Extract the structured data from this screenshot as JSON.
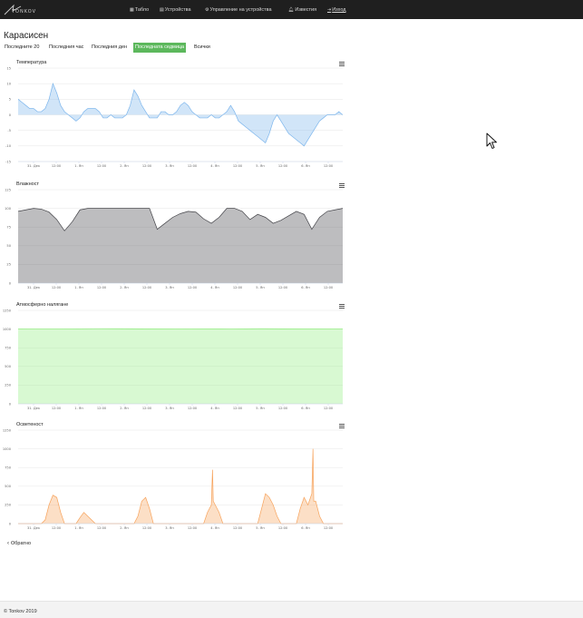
{
  "navbar": {
    "logo_text": "TONKOV",
    "items": [
      {
        "label": "Табло",
        "icon": "grid-icon"
      },
      {
        "label": "Устройства",
        "icon": "devices-icon"
      },
      {
        "label": "Управление на устройства",
        "icon": "gear-icon"
      },
      {
        "label": "Известия",
        "icon": "bell-icon"
      },
      {
        "label": "Изход",
        "icon": "logout-icon"
      }
    ]
  },
  "page": {
    "title": "Карасисен"
  },
  "filters": [
    {
      "label": "Последните 20",
      "active": false
    },
    {
      "label": "Последния час",
      "active": false
    },
    {
      "label": "Последния ден",
      "active": false
    },
    {
      "label": "Последната седмица",
      "active": true
    },
    {
      "label": "Всички",
      "active": false
    }
  ],
  "chart_data": [
    {
      "type": "area",
      "title": "Температура",
      "x_ticks": [
        "31. Дек",
        "12:00",
        "1. Ян",
        "12:00",
        "2. Ян",
        "12:00",
        "3. Ян",
        "12:00",
        "4. Ян",
        "12:00",
        "5. Ян",
        "12:00",
        "6. Ян",
        "12:00"
      ],
      "y_ticks": [
        "15",
        "10",
        "5",
        "0",
        "-5",
        "-10",
        "-15"
      ],
      "ylim": [
        -15,
        15
      ],
      "color": "#7cb5ec",
      "x": [
        0,
        2,
        4,
        6,
        8,
        10,
        12,
        14,
        16,
        18,
        20,
        22,
        24,
        26,
        28,
        30,
        32,
        34,
        36,
        38,
        40,
        42,
        44,
        46,
        48,
        50,
        52,
        54,
        56,
        58,
        60,
        62,
        64,
        66,
        68,
        70,
        72,
        74,
        76,
        78,
        80,
        82,
        84,
        86,
        88,
        90,
        92,
        94,
        96,
        98,
        100,
        102,
        104,
        106,
        108,
        110,
        112,
        114,
        116,
        118,
        120,
        122,
        124,
        126,
        128,
        130,
        132,
        134,
        136,
        138,
        140,
        142,
        144,
        146,
        148,
        150,
        152,
        154,
        156,
        158,
        160,
        162,
        164,
        166,
        168
      ],
      "values": [
        5,
        4,
        3,
        2,
        2,
        1,
        1,
        2,
        5,
        10,
        7,
        3,
        1,
        0,
        -1,
        -2,
        -1,
        1,
        2,
        2,
        2,
        1,
        -1,
        -1,
        0,
        -1,
        -1,
        -1,
        0,
        3,
        8,
        6,
        3,
        1,
        -1,
        -1,
        -1,
        1,
        1,
        0,
        0,
        1,
        3,
        4,
        3,
        1,
        0,
        -1,
        -1,
        -1,
        0,
        -1,
        -1,
        0,
        1,
        3,
        1,
        -2,
        -3,
        -4,
        -5,
        -6,
        -7,
        -8,
        -9,
        -6,
        -2,
        0,
        -2,
        -4,
        -6,
        -7,
        -8,
        -9,
        -10,
        -8,
        -6,
        -4,
        -2,
        -1,
        0,
        0,
        0,
        1,
        0
      ]
    },
    {
      "type": "area",
      "title": "Влажност",
      "x_ticks": [
        "31. Дек",
        "12:00",
        "1. Ян",
        "12:00",
        "2. Ян",
        "12:00",
        "3. Ян",
        "12:00",
        "4. Ян",
        "12:00",
        "5. Ян",
        "12:00",
        "6. Ян",
        "12:00"
      ],
      "y_ticks": [
        "125",
        "100",
        "75",
        "50",
        "25",
        "0"
      ],
      "ylim": [
        0,
        125
      ],
      "color": "#434348",
      "x": [
        0,
        4,
        8,
        12,
        16,
        20,
        24,
        28,
        32,
        36,
        40,
        44,
        48,
        52,
        56,
        60,
        64,
        68,
        72,
        76,
        80,
        84,
        88,
        92,
        96,
        100,
        104,
        108,
        112,
        116,
        120,
        124,
        128,
        132,
        136,
        140,
        144,
        148,
        152,
        156,
        160,
        164,
        168
      ],
      "values": [
        96,
        98,
        100,
        99,
        95,
        85,
        70,
        82,
        98,
        100,
        100,
        100,
        100,
        100,
        100,
        100,
        100,
        100,
        72,
        80,
        88,
        93,
        96,
        95,
        86,
        80,
        88,
        100,
        100,
        96,
        85,
        92,
        88,
        80,
        84,
        90,
        96,
        92,
        72,
        88,
        96,
        98,
        100
      ]
    },
    {
      "type": "area",
      "title": "Атмосферно налягане",
      "x_ticks": [
        "31. Дек",
        "12:00",
        "1. Ян",
        "12:00",
        "2. Ян",
        "12:00",
        "3. Ян",
        "12:00",
        "4. Ян",
        "12:00",
        "5. Ян",
        "12:00",
        "6. Ян",
        "12:00"
      ],
      "y_ticks": [
        "1250",
        "1000",
        "750",
        "500",
        "250",
        "0"
      ],
      "ylim": [
        0,
        1250
      ],
      "color": "#90ed7d",
      "x": [
        0,
        21,
        42,
        63,
        84,
        105,
        126,
        147,
        168
      ],
      "values": [
        1000,
        1002,
        1005,
        1003,
        1000,
        1001,
        1004,
        1001,
        1000
      ]
    },
    {
      "type": "area",
      "title": "Осветеност",
      "x_ticks": [
        "31. Дек",
        "12:00",
        "1. Ян",
        "12:00",
        "2. Ян",
        "12:00",
        "3. Ян",
        "12:00",
        "4. Ян",
        "12:00",
        "5. Ян",
        "12:00",
        "6. Ян",
        "12:00"
      ],
      "y_ticks": [
        "1250",
        "1000",
        "750",
        "500",
        "250",
        "0"
      ],
      "ylim": [
        0,
        1250
      ],
      "color": "#f7a35c",
      "x": [
        0,
        4,
        8,
        12,
        14,
        16,
        18,
        20,
        22,
        24,
        26,
        28,
        30,
        32,
        34,
        36,
        38,
        40,
        44,
        48,
        52,
        56,
        60,
        62,
        64,
        66,
        68,
        70,
        72,
        74,
        76,
        78,
        80,
        84,
        88,
        92,
        96,
        98,
        100,
        100.6,
        101,
        102,
        104,
        106,
        108,
        112,
        116,
        120,
        124,
        126,
        128,
        130,
        132,
        134,
        136,
        140,
        144,
        146,
        148,
        150,
        152,
        152.6,
        153,
        154,
        156,
        158,
        160,
        164,
        168
      ],
      "values": [
        0,
        0,
        0,
        0,
        50,
        250,
        380,
        350,
        150,
        0,
        0,
        0,
        0,
        80,
        150,
        100,
        50,
        0,
        0,
        0,
        0,
        0,
        0,
        100,
        300,
        350,
        200,
        0,
        0,
        0,
        0,
        0,
        0,
        0,
        0,
        0,
        0,
        150,
        250,
        720,
        300,
        250,
        150,
        0,
        0,
        0,
        0,
        0,
        0,
        200,
        400,
        350,
        250,
        100,
        0,
        0,
        0,
        200,
        350,
        250,
        400,
        1000,
        300,
        300,
        100,
        0,
        0,
        0,
        0
      ]
    }
  ],
  "back": {
    "label": "Обратно"
  },
  "footer": {
    "text": "© Tonkov 2019"
  }
}
